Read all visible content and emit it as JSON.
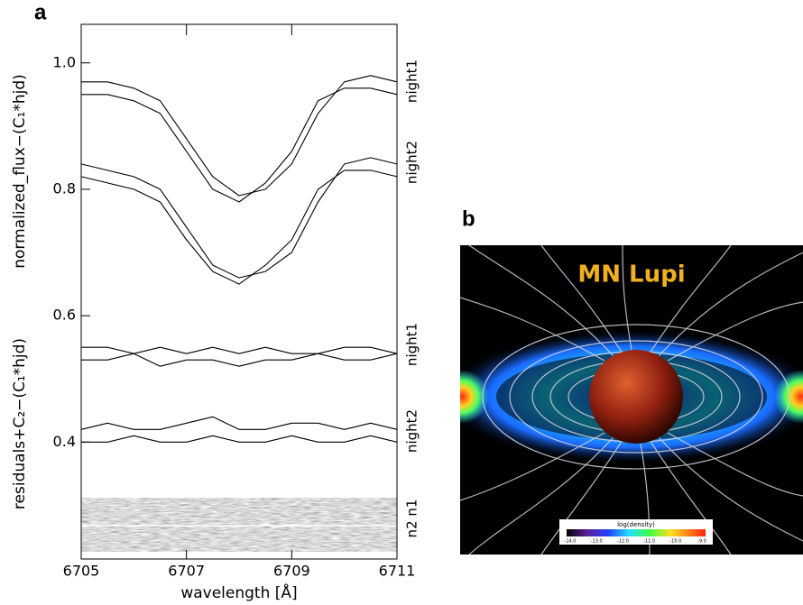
{
  "chart_data": {
    "type": "line",
    "panel_label": "a",
    "xlabel": "wavelength [Å]",
    "ylabels": [
      "normalized_flux−(C₁*hjd)",
      "residuals+C₂−(C₁*hjd)"
    ],
    "annotations": [
      "night1",
      "night2",
      "night1",
      "night2",
      "n2 n1"
    ],
    "x": [
      6705,
      6705.5,
      6706,
      6706.5,
      6707,
      6707.5,
      6708,
      6708.5,
      6709,
      6709.5,
      6710,
      6710.5,
      6711
    ],
    "series": [
      {
        "color": "#000000",
        "values": [
          0.97,
          0.97,
          0.96,
          0.94,
          0.88,
          0.82,
          0.79,
          0.8,
          0.84,
          0.92,
          0.97,
          0.98,
          0.97
        ]
      },
      {
        "color": "#000000",
        "values": [
          0.95,
          0.95,
          0.94,
          0.92,
          0.86,
          0.8,
          0.78,
          0.81,
          0.86,
          0.94,
          0.96,
          0.96,
          0.95
        ]
      },
      {
        "color": "#000000",
        "values": [
          0.84,
          0.83,
          0.82,
          0.8,
          0.74,
          0.68,
          0.66,
          0.67,
          0.7,
          0.78,
          0.84,
          0.85,
          0.84
        ]
      },
      {
        "color": "#000000",
        "values": [
          0.82,
          0.81,
          0.8,
          0.78,
          0.72,
          0.67,
          0.65,
          0.68,
          0.72,
          0.8,
          0.83,
          0.83,
          0.82
        ]
      },
      {
        "color": "#000000",
        "values": [
          0.55,
          0.55,
          0.54,
          0.55,
          0.54,
          0.55,
          0.54,
          0.55,
          0.54,
          0.54,
          0.55,
          0.55,
          0.54
        ]
      },
      {
        "color": "#000000",
        "values": [
          0.53,
          0.53,
          0.54,
          0.52,
          0.53,
          0.53,
          0.52,
          0.53,
          0.53,
          0.54,
          0.53,
          0.53,
          0.54
        ]
      },
      {
        "color": "#000000",
        "values": [
          0.42,
          0.43,
          0.42,
          0.42,
          0.43,
          0.44,
          0.42,
          0.42,
          0.43,
          0.43,
          0.42,
          0.43,
          0.42
        ]
      },
      {
        "color": "#000000",
        "values": [
          0.4,
          0.4,
          0.41,
          0.4,
          0.4,
          0.41,
          0.4,
          0.4,
          0.41,
          0.4,
          0.4,
          0.41,
          0.4
        ]
      }
    ],
    "xlim": [
      6705,
      6711
    ],
    "xticks": [
      6705,
      6707,
      6709,
      6711
    ],
    "ylim": [
      0.215,
      1.061
    ],
    "yticks": [
      0.4,
      0.6,
      0.8,
      {
        "value": 1,
        "label": "1.0"
      }
    ]
  },
  "image_panel": {
    "label": "b",
    "title": "MN Lupi",
    "colorbar": {
      "label": "log(density)",
      "ticks": [
        "-14.0",
        "-13.0",
        "-12.0",
        "-11.0",
        "-10.0",
        "-9.0"
      ]
    }
  }
}
